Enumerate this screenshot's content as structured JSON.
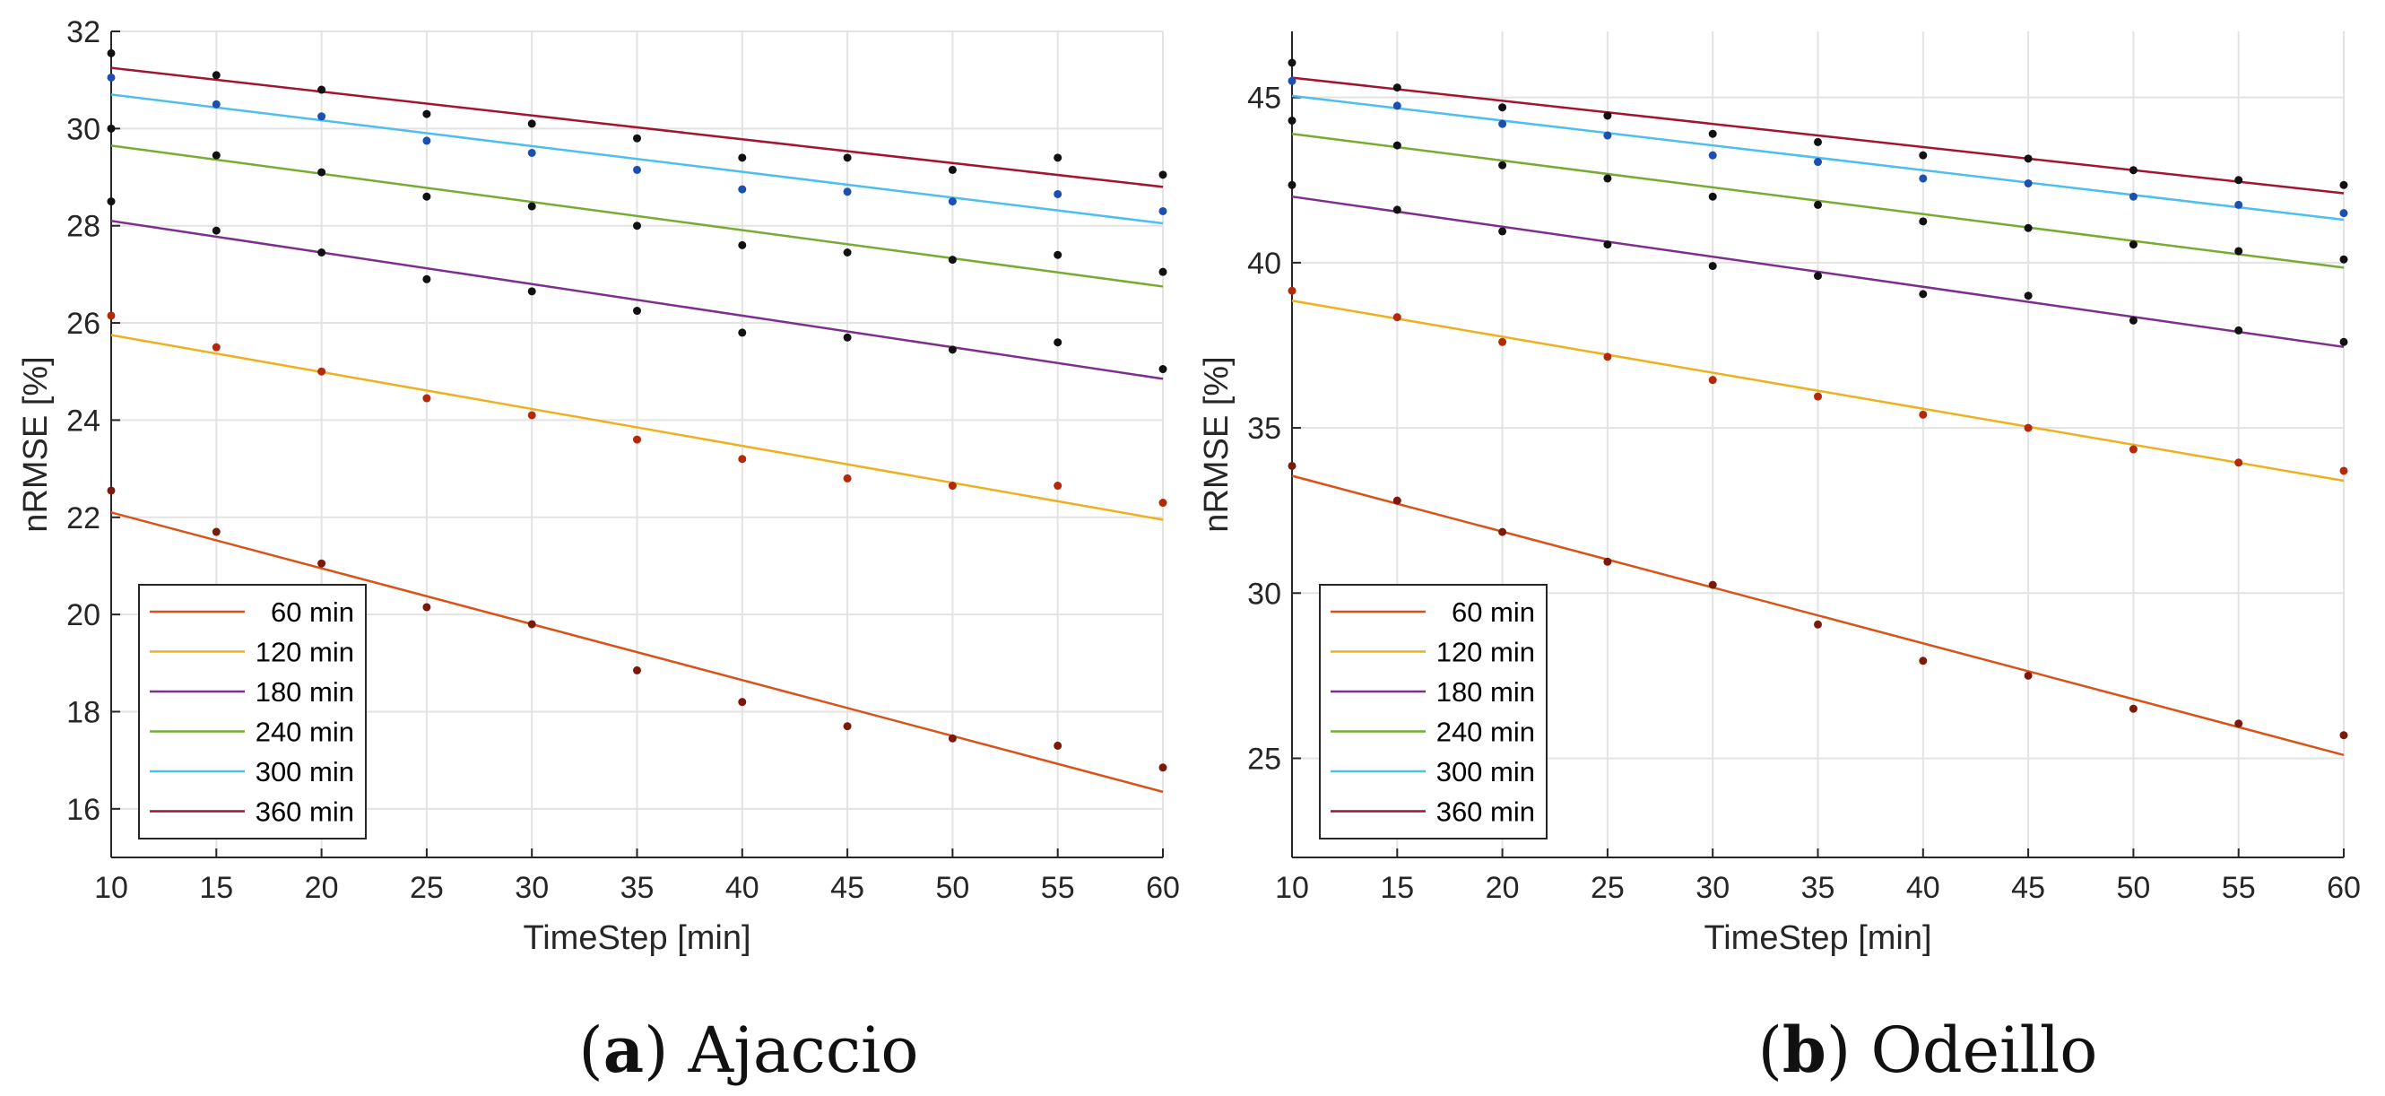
{
  "figure": {
    "caption_a": {
      "letter": "a",
      "name": " Ajaccio"
    },
    "caption_b": {
      "letter": "b",
      "name": " Odeillo"
    }
  },
  "chart_data": [
    {
      "type": "scatter",
      "title": "Ajaccio",
      "xlabel": "TimeStep [min]",
      "ylabel": "nRMSE [%]",
      "xlim": [
        10,
        60
      ],
      "ylim": [
        15,
        32
      ],
      "xticks": [
        10,
        15,
        20,
        25,
        30,
        35,
        40,
        45,
        50,
        55,
        60
      ],
      "yticks": [
        16,
        18,
        20,
        22,
        24,
        26,
        28,
        30,
        32
      ],
      "grid": true,
      "legend_position": "bottom-left",
      "x": [
        10,
        15,
        20,
        25,
        30,
        35,
        40,
        45,
        50,
        55,
        60
      ],
      "series": [
        {
          "name": "60 min",
          "color": "#D95319",
          "dot_color": "#7a1a0c",
          "fit": [
            22.1,
            16.35
          ],
          "values": [
            22.55,
            21.7,
            21.05,
            20.15,
            19.8,
            18.85,
            18.2,
            17.7,
            17.45,
            17.3,
            16.85
          ]
        },
        {
          "name": "120 min",
          "color": "#EDB120",
          "dot_color": "#b22a0a",
          "fit": [
            25.75,
            21.95
          ],
          "values": [
            26.15,
            25.5,
            25.0,
            24.45,
            24.1,
            23.6,
            23.2,
            22.8,
            22.65,
            22.65,
            22.3
          ]
        },
        {
          "name": "180 min",
          "color": "#7E2F8E",
          "dot_color": "#111111",
          "fit": [
            28.1,
            24.85
          ],
          "values": [
            28.5,
            27.9,
            27.45,
            26.9,
            26.65,
            26.25,
            25.8,
            25.7,
            25.45,
            25.6,
            25.05
          ]
        },
        {
          "name": "240 min",
          "color": "#77AC30",
          "dot_color": "#111111",
          "fit": [
            29.65,
            26.75
          ],
          "values": [
            30.0,
            29.45,
            29.1,
            28.6,
            28.4,
            28.0,
            27.6,
            27.45,
            27.3,
            27.4,
            27.05
          ]
        },
        {
          "name": "300 min",
          "color": "#4DBEEE",
          "dot_color": "#1c4fb0",
          "fit": [
            30.7,
            28.05
          ],
          "values": [
            31.05,
            30.5,
            30.25,
            29.75,
            29.5,
            29.15,
            28.75,
            28.7,
            28.5,
            28.65,
            28.3
          ]
        },
        {
          "name": "360 min",
          "color": "#A2142F",
          "dot_color": "#111111",
          "fit": [
            31.25,
            28.8
          ],
          "values": [
            31.55,
            31.1,
            30.8,
            30.3,
            30.1,
            29.8,
            29.4,
            29.4,
            29.15,
            29.4,
            29.05
          ]
        }
      ]
    },
    {
      "type": "scatter",
      "title": "Odeillo",
      "xlabel": "TimeStep [min]",
      "ylabel": "nRMSE [%]",
      "xlim": [
        10,
        60
      ],
      "ylim": [
        22,
        47
      ],
      "xticks": [
        10,
        15,
        20,
        25,
        30,
        35,
        40,
        45,
        50,
        55,
        60
      ],
      "yticks": [
        25,
        30,
        35,
        40,
        45
      ],
      "grid": true,
      "legend_position": "bottom-left",
      "x": [
        10,
        15,
        20,
        25,
        30,
        35,
        40,
        45,
        50,
        55,
        60
      ],
      "series": [
        {
          "name": "60 min",
          "color": "#D95319",
          "dot_color": "#7a1a0c",
          "fit": [
            33.55,
            25.1
          ],
          "values": [
            33.85,
            32.8,
            31.85,
            30.95,
            30.25,
            29.05,
            27.95,
            27.5,
            26.5,
            26.05,
            25.7
          ]
        },
        {
          "name": "120 min",
          "color": "#EDB120",
          "dot_color": "#b22a0a",
          "fit": [
            38.85,
            33.4
          ],
          "values": [
            39.15,
            38.35,
            37.6,
            37.15,
            36.45,
            35.95,
            35.4,
            35.0,
            34.35,
            33.95,
            33.7
          ]
        },
        {
          "name": "180 min",
          "color": "#7E2F8E",
          "dot_color": "#111111",
          "fit": [
            42.0,
            37.45
          ],
          "values": [
            42.35,
            41.6,
            40.95,
            40.55,
            39.9,
            39.6,
            39.05,
            39.0,
            38.25,
            37.95,
            37.6
          ]
        },
        {
          "name": "240 min",
          "color": "#77AC30",
          "dot_color": "#111111",
          "fit": [
            43.9,
            39.85
          ],
          "values": [
            44.3,
            43.55,
            42.95,
            42.55,
            42.0,
            41.75,
            41.25,
            41.05,
            40.55,
            40.35,
            40.1
          ]
        },
        {
          "name": "300 min",
          "color": "#4DBEEE",
          "dot_color": "#1c4fb0",
          "fit": [
            45.05,
            41.3
          ],
          "values": [
            45.5,
            44.75,
            44.2,
            43.85,
            43.25,
            43.05,
            42.55,
            42.4,
            42.0,
            41.75,
            41.5
          ]
        },
        {
          "name": "360 min",
          "color": "#A2142F",
          "dot_color": "#111111",
          "fit": [
            45.6,
            42.1
          ],
          "values": [
            46.05,
            45.3,
            44.7,
            44.45,
            43.9,
            43.65,
            43.25,
            43.15,
            42.8,
            42.5,
            42.35
          ]
        }
      ]
    }
  ]
}
